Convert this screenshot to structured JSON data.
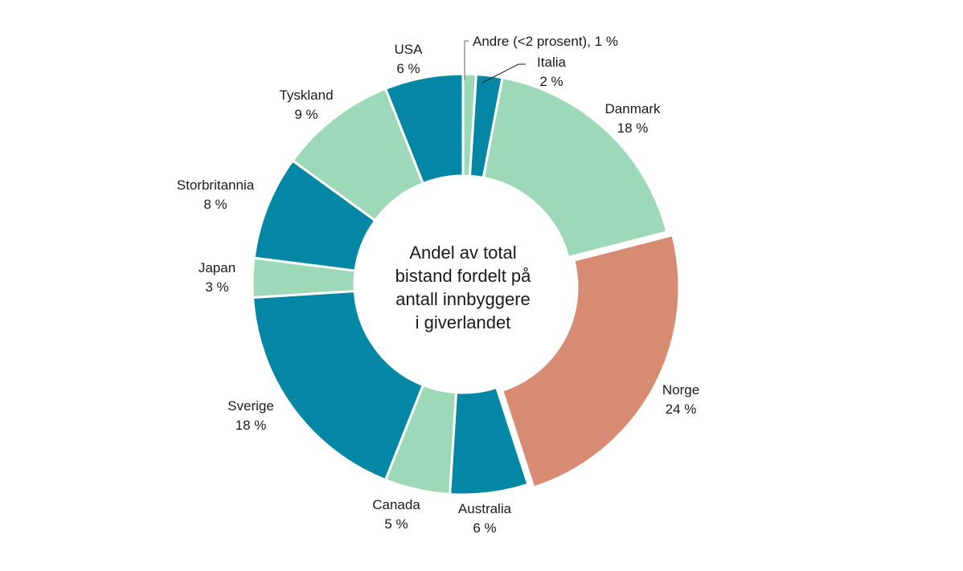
{
  "chart_data": {
    "type": "pie",
    "subtype": "donut",
    "title": "Andel av total bistand fordelt på antall innbyggere i giverlandet",
    "center_label": [
      "Andel av total",
      "bistand fordelt på",
      "antall innbyggere",
      "i giverlandet"
    ],
    "unit": "%",
    "start_angle_deg": 0,
    "direction": "clockwise",
    "slices": [
      {
        "name": "Andre (<2 prosent)",
        "value": 1,
        "label": "Andre (<2 prosent), 1 %",
        "color": "#9dd9b9"
      },
      {
        "name": "Italia",
        "value": 2,
        "label": "2 %",
        "color": "#0387a4"
      },
      {
        "name": "Danmark",
        "value": 18,
        "label": "18 %",
        "color": "#9dd9b9"
      },
      {
        "name": "Norge",
        "value": 24,
        "label": "24 %",
        "color": "#d78b72",
        "exploded": true
      },
      {
        "name": "Australia",
        "value": 6,
        "label": "6 %",
        "color": "#0387a4"
      },
      {
        "name": "Canada",
        "value": 5,
        "label": "5 %",
        "color": "#9dd9b9"
      },
      {
        "name": "Sverige",
        "value": 18,
        "label": "18 %",
        "color": "#0387a4"
      },
      {
        "name": "Japan",
        "value": 3,
        "label": "3 %",
        "color": "#9dd9b9"
      },
      {
        "name": "Storbritannia",
        "value": 8,
        "label": "8 %",
        "color": "#0387a4"
      },
      {
        "name": "Tyskland",
        "value": 9,
        "label": "9 %",
        "color": "#9dd9b9"
      },
      {
        "name": "USA",
        "value": 6,
        "label": "6 %",
        "color": "#0387a4"
      }
    ],
    "legend": "none (direct labels)"
  },
  "labels": {
    "andre": "Andre (<2 prosent), 1 %",
    "italia": {
      "name": "Italia",
      "pct": "2 %"
    },
    "danmark": {
      "name": "Danmark",
      "pct": "18 %"
    },
    "norge": {
      "name": "Norge",
      "pct": "24 %"
    },
    "australia": {
      "name": "Australia",
      "pct": "6 %"
    },
    "canada": {
      "name": "Canada",
      "pct": "5 %"
    },
    "sverige": {
      "name": "Sverige",
      "pct": "18 %"
    },
    "japan": {
      "name": "Japan",
      "pct": "3 %"
    },
    "storbritannia": {
      "name": "Storbritannia",
      "pct": "8 %"
    },
    "tyskland": {
      "name": "Tyskland",
      "pct": "9 %"
    },
    "usa": {
      "name": "USA",
      "pct": "6 %"
    }
  },
  "center": {
    "line1": "Andel av total",
    "line2": "bistand fordelt på",
    "line3": "antall innbyggere",
    "line4": "i giverlandet"
  }
}
